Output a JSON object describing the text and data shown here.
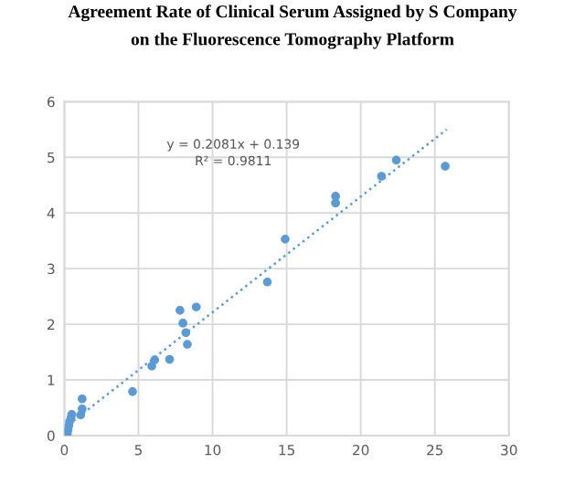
{
  "chart_data": {
    "type": "scatter",
    "title": "Agreement Rate of Clinical Serum Assigned by S Company\non the Fluorescence Tomography Platform",
    "series": [
      {
        "color": "#5b9bd5",
        "x": [
          0.2,
          0.25,
          0.3,
          0.35,
          0.45,
          0.5,
          1.1,
          1.2,
          1.2,
          4.6,
          5.9,
          6.1,
          7.1,
          7.8,
          8.0,
          8.2,
          8.3,
          8.9,
          13.7,
          14.9,
          18.3,
          18.3,
          21.4,
          22.4,
          25.7
        ],
        "values": [
          0.02,
          0.1,
          0.18,
          0.25,
          0.32,
          0.38,
          0.37,
          0.48,
          0.66,
          0.79,
          1.25,
          1.36,
          1.37,
          2.25,
          2.02,
          1.85,
          1.64,
          2.31,
          2.76,
          3.53,
          4.18,
          4.3,
          4.66,
          4.95,
          4.84
        ]
      },
      {
        "type": "line",
        "color": "#5b9bd5",
        "line_style": "dotted",
        "marker": "none",
        "x": [
          0.3,
          25.8
        ],
        "values": [
          0.2,
          5.5
        ]
      }
    ],
    "annotations": [
      "y = 0.2081x + 0.139",
      "R² = 0.9811"
    ],
    "marker": "circle",
    "grid": true,
    "legend": false,
    "xlim": [
      0,
      30
    ],
    "xticks": [
      0,
      5,
      10,
      15,
      20,
      25,
      30
    ],
    "ylim": [
      0,
      6
    ],
    "yticks": [
      0,
      1,
      2,
      3,
      4,
      5,
      6
    ]
  }
}
